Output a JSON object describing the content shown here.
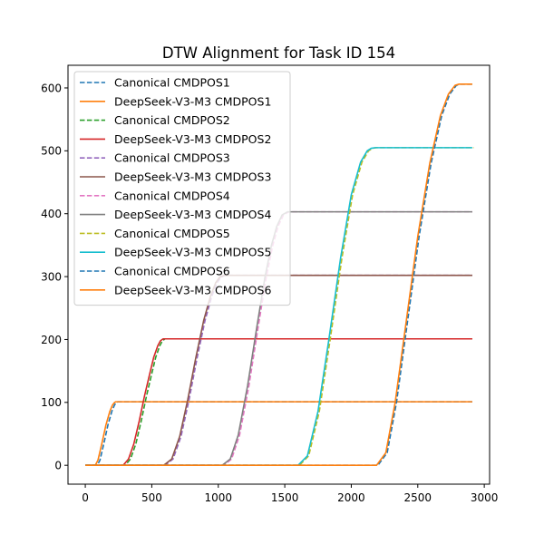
{
  "chart_data": {
    "type": "line",
    "title": "DTW Alignment for Task ID 154",
    "xlabel": "",
    "ylabel": "",
    "xlim": [
      -130,
      3040
    ],
    "ylim": [
      -30,
      636
    ],
    "xticks": [
      0,
      500,
      1000,
      1500,
      2000,
      2500,
      3000
    ],
    "yticks": [
      0,
      100,
      200,
      300,
      400,
      500,
      600
    ],
    "grid": false,
    "legend_position": "top-left",
    "series": [
      {
        "name": "Canonical CMDPOS1",
        "color": "#1f77b4",
        "dashed": true,
        "x": [
          0,
          90,
          110,
          140,
          170,
          200,
          220,
          235,
          245,
          2910
        ],
        "y": [
          0,
          0,
          8,
          35,
          64,
          86,
          96,
          100,
          101,
          101
        ]
      },
      {
        "name": "DeepSeek-V3-M3 CMDPOS1",
        "color": "#ff7f0e",
        "dashed": false,
        "x": [
          0,
          75,
          95,
          125,
          155,
          185,
          205,
          220,
          230,
          2910
        ],
        "y": [
          0,
          0,
          8,
          35,
          64,
          86,
          96,
          100,
          101,
          101
        ]
      },
      {
        "name": "Canonical CMDPOS2",
        "color": "#2ca02c",
        "dashed": true,
        "x": [
          0,
          300,
          340,
          380,
          420,
          460,
          500,
          530,
          560,
          580,
          600,
          2910
        ],
        "y": [
          0,
          0,
          10,
          34,
          70,
          110,
          146,
          172,
          190,
          198,
          201,
          201
        ]
      },
      {
        "name": "DeepSeek-V3-M3 CMDPOS2",
        "color": "#d62728",
        "dashed": false,
        "x": [
          0,
          285,
          325,
          365,
          405,
          445,
          485,
          515,
          545,
          565,
          585,
          2910
        ],
        "y": [
          0,
          0,
          10,
          34,
          70,
          110,
          146,
          172,
          190,
          198,
          201,
          201
        ]
      },
      {
        "name": "Canonical CMDPOS3",
        "color": "#9467bd",
        "dashed": true,
        "x": [
          0,
          600,
          660,
          720,
          780,
          840,
          900,
          950,
          990,
          1020,
          1050,
          2910
        ],
        "y": [
          0,
          0,
          10,
          46,
          104,
          170,
          230,
          268,
          290,
          299,
          302,
          302
        ]
      },
      {
        "name": "DeepSeek-V3-M3 CMDPOS3",
        "color": "#8c564b",
        "dashed": false,
        "x": [
          0,
          590,
          650,
          710,
          770,
          830,
          890,
          940,
          980,
          1010,
          1040,
          2910
        ],
        "y": [
          0,
          0,
          10,
          46,
          104,
          170,
          230,
          268,
          290,
          299,
          302,
          302
        ]
      },
      {
        "name": "Canonical CMDPOS4",
        "color": "#e377c2",
        "dashed": true,
        "x": [
          0,
          1040,
          1100,
          1160,
          1230,
          1300,
          1360,
          1410,
          1450,
          1490,
          1530,
          2910
        ],
        "y": [
          0,
          0,
          10,
          48,
          126,
          220,
          298,
          350,
          380,
          398,
          403,
          403
        ]
      },
      {
        "name": "DeepSeek-V3-M3 CMDPOS4",
        "color": "#7f7f7f",
        "dashed": false,
        "x": [
          0,
          1030,
          1090,
          1150,
          1220,
          1290,
          1350,
          1400,
          1440,
          1480,
          1520,
          2910
        ],
        "y": [
          0,
          0,
          10,
          48,
          126,
          220,
          298,
          350,
          380,
          398,
          403,
          403
        ]
      },
      {
        "name": "Canonical CMDPOS5",
        "color": "#bcbd22",
        "dashed": true,
        "x": [
          0,
          1610,
          1680,
          1760,
          1840,
          1930,
          2010,
          2080,
          2130,
          2160,
          2190,
          2920
        ],
        "y": [
          0,
          0,
          15,
          86,
          198,
          330,
          430,
          482,
          500,
          504,
          505,
          505
        ]
      },
      {
        "name": "DeepSeek-V3-M3 CMDPOS5",
        "color": "#17becf",
        "dashed": false,
        "x": [
          0,
          1600,
          1670,
          1750,
          1830,
          1920,
          2000,
          2070,
          2120,
          2150,
          2180,
          2910
        ],
        "y": [
          0,
          0,
          15,
          86,
          198,
          330,
          430,
          482,
          500,
          504,
          505,
          505
        ]
      },
      {
        "name": "Canonical CMDPOS6",
        "color": "#1f77b4",
        "dashed": true,
        "x": [
          0,
          2200,
          2270,
          2340,
          2420,
          2510,
          2600,
          2680,
          2740,
          2790,
          2820,
          2910
        ],
        "y": [
          0,
          0,
          20,
          100,
          224,
          364,
          480,
          556,
          590,
          604,
          606,
          606
        ]
      },
      {
        "name": "DeepSeek-V3-M3 CMDPOS6",
        "color": "#ff7f0e",
        "dashed": false,
        "x": [
          0,
          2190,
          2260,
          2330,
          2410,
          2500,
          2590,
          2670,
          2730,
          2780,
          2810,
          2910
        ],
        "y": [
          0,
          0,
          20,
          100,
          224,
          364,
          480,
          556,
          590,
          604,
          606,
          606
        ]
      }
    ]
  }
}
